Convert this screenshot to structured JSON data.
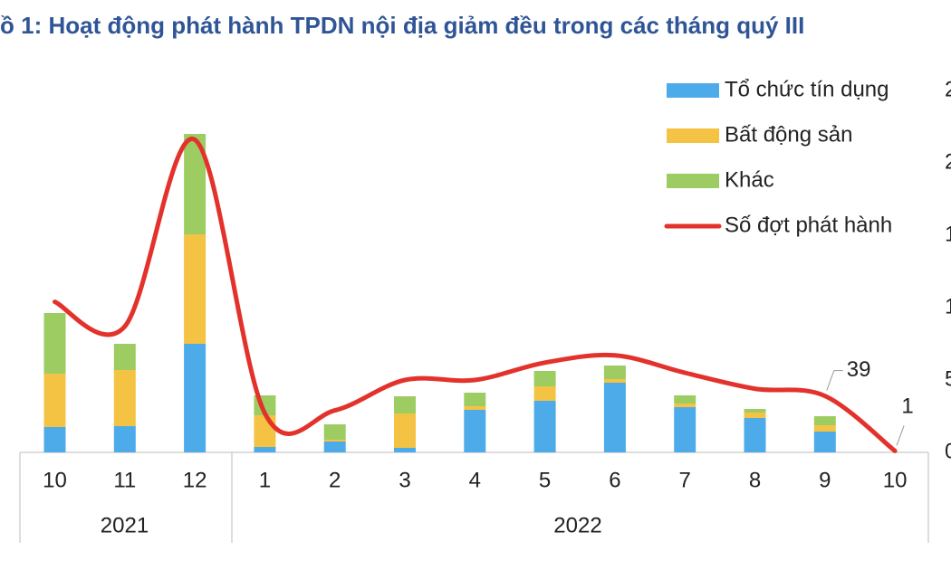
{
  "chart_data": {
    "type": "bar_line",
    "title": "ồ 1: Hoạt động phát hành TPDN nội địa giảm đều trong các tháng quý III",
    "category_groups": [
      {
        "name": "2021",
        "categories": [
          "10",
          "11",
          "12"
        ]
      },
      {
        "name": "2022",
        "categories": [
          "1",
          "2",
          "3",
          "4",
          "5",
          "6",
          "7",
          "8",
          "9",
          "10"
        ]
      }
    ],
    "ylim": [
      0,
      40
    ],
    "y2lim": [
      0,
      250
    ],
    "y2ticks": [
      0,
      {
        "value": 50,
        "label": "5"
      },
      {
        "value": 100,
        "label": "1"
      },
      {
        "value": 150,
        "label": "1"
      },
      {
        "value": 200,
        "label": "2"
      },
      {
        "value": 250,
        "label": "2"
      }
    ],
    "series": [
      {
        "name": "Tổ chức tín dụng",
        "color": "#4eabe9",
        "values": [
          2.8,
          2.9,
          12.0,
          0.6,
          1.2,
          0.5,
          4.7,
          5.7,
          7.7,
          5.0,
          3.8,
          2.3,
          0
        ]
      },
      {
        "name": "Bất động sản",
        "color": "#f5c343",
        "values": [
          5.9,
          6.2,
          12.1,
          3.5,
          0.2,
          3.8,
          0.4,
          1.6,
          0.4,
          0.4,
          0.6,
          0.7,
          0
        ]
      },
      {
        "name": "Khác",
        "color": "#9dcd62",
        "values": [
          6.7,
          2.9,
          11.1,
          2.2,
          1.7,
          1.9,
          1.5,
          1.7,
          1.5,
          0.9,
          0.4,
          1.0,
          0
        ]
      },
      {
        "name": "Số đợt phát hành",
        "color": "#e3322b",
        "type": "line",
        "axis": "y2",
        "values": [
          104,
          87,
          216,
          27,
          29,
          50,
          50,
          62,
          67,
          55,
          44,
          39,
          1
        ]
      }
    ]
  }
}
